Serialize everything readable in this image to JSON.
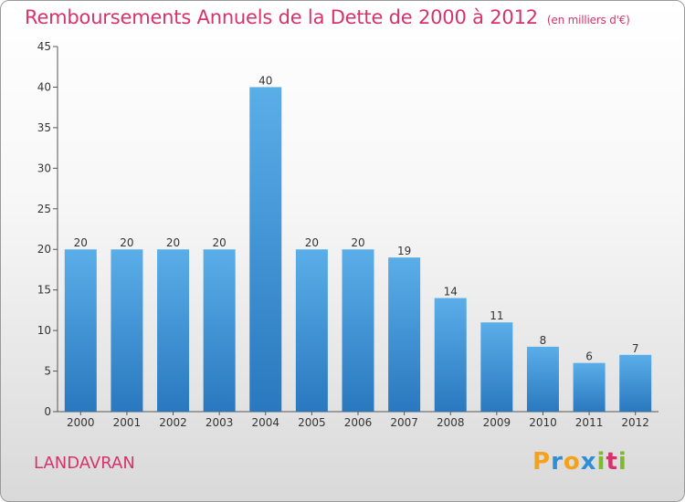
{
  "title": "Remboursements Annuels de la Dette de 2000 à 2012",
  "unit_note": "(en milliers d'€)",
  "place": "LANDAVRAN",
  "logo": {
    "letters": [
      "P",
      "r",
      "o",
      "x",
      "i",
      "t",
      "i"
    ],
    "colors": [
      "#f4a21b",
      "#2e8fd6",
      "#f4a21b",
      "#2e8fd6",
      "#7dbb2c",
      "#d6336c",
      "#7dbb2c"
    ]
  },
  "colors": {
    "bar_top": "#5aaee8",
    "bar_bottom": "#2a78bf",
    "title": "#d6336c"
  },
  "chart_data": {
    "type": "bar",
    "categories": [
      "2000",
      "2001",
      "2002",
      "2003",
      "2004",
      "2005",
      "2006",
      "2007",
      "2008",
      "2009",
      "2010",
      "2011",
      "2012"
    ],
    "values": [
      20,
      20,
      20,
      20,
      40,
      20,
      20,
      19,
      14,
      11,
      8,
      6,
      7
    ],
    "ylim": [
      0,
      45
    ],
    "yticks": [
      0,
      5,
      10,
      15,
      20,
      25,
      30,
      35,
      40,
      45
    ],
    "xlabel": "",
    "ylabel": "",
    "grid": false
  }
}
